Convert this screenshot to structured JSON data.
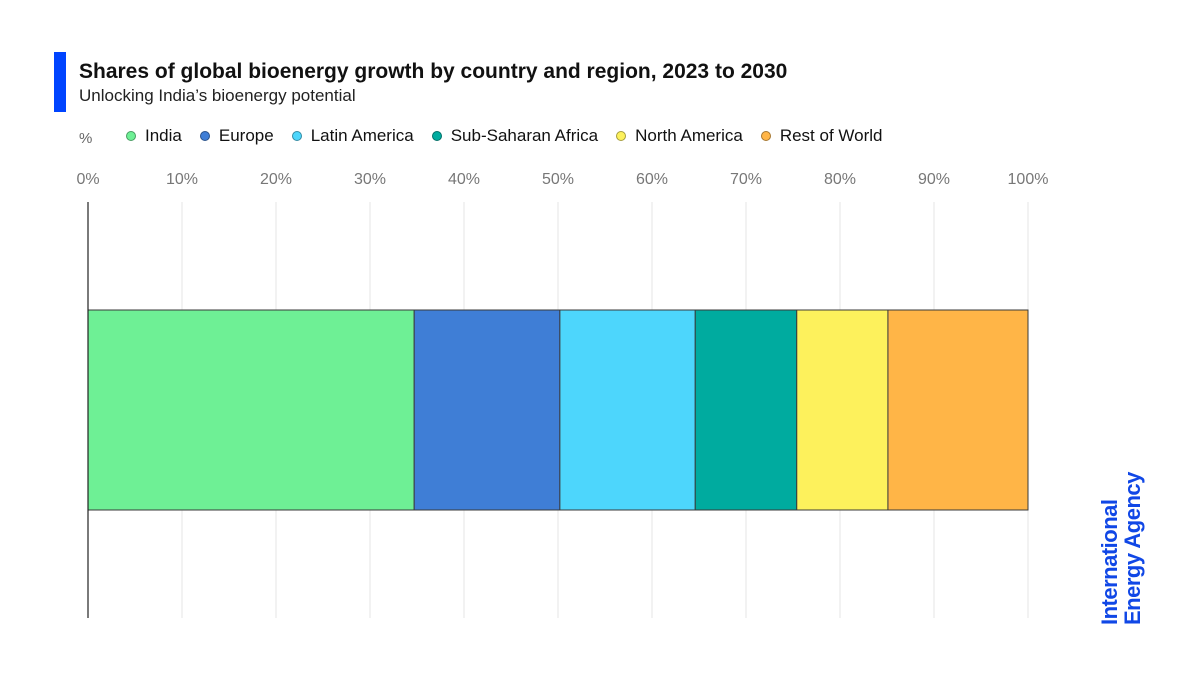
{
  "header": {
    "title": "Shares of global bioenergy growth by country and region, 2023 to 2030",
    "subtitle": "Unlocking India’s bioenergy potential",
    "accent_color": "#0044ff"
  },
  "logo": {
    "line1": "International",
    "line2": "Energy Agency",
    "color": "#1047e6"
  },
  "chart_data": {
    "type": "bar",
    "orientation": "horizontal",
    "stacked": true,
    "unit_label": "%",
    "xlim": [
      0,
      100
    ],
    "x_ticks": [
      "0%",
      "10%",
      "20%",
      "30%",
      "40%",
      "50%",
      "60%",
      "70%",
      "80%",
      "90%",
      "100%"
    ],
    "grid": true,
    "legend_position": "top",
    "series": [
      {
        "name": "India",
        "value": 34.7,
        "color": "#6ef095"
      },
      {
        "name": "Europe",
        "value": 15.5,
        "color": "#3f7ed6"
      },
      {
        "name": "Latin America",
        "value": 14.4,
        "color": "#4dd6fc"
      },
      {
        "name": "Sub-Saharan Africa",
        "value": 10.8,
        "color": "#00ab9f"
      },
      {
        "name": "North America",
        "value": 9.7,
        "color": "#fdf15c"
      },
      {
        "name": "Rest of World",
        "value": 14.9,
        "color": "#ffb547"
      }
    ]
  }
}
